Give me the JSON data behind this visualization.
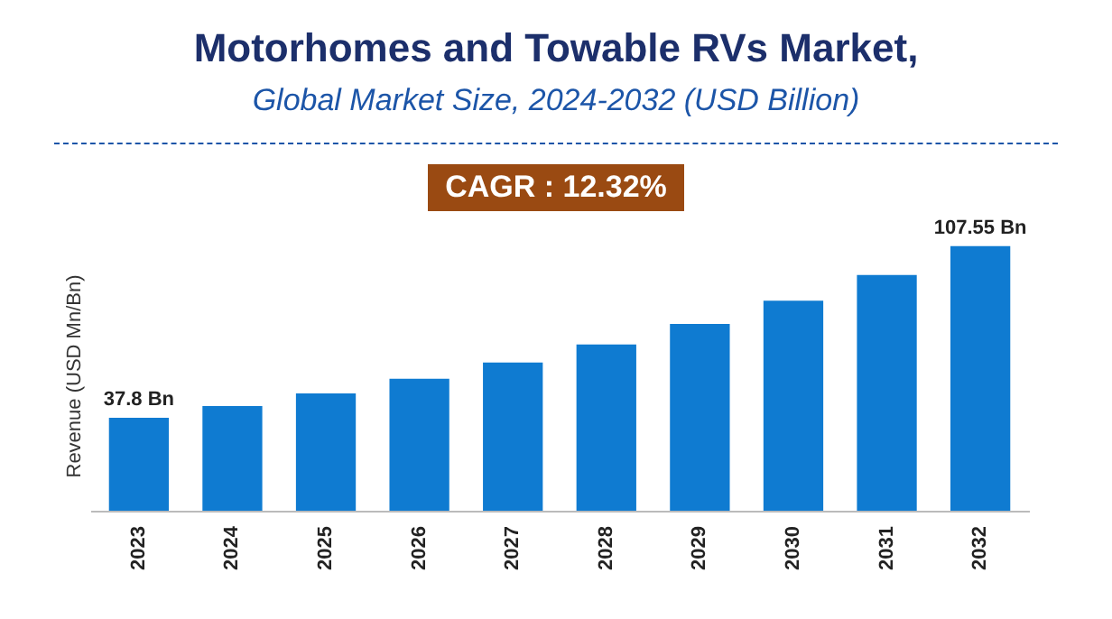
{
  "chart_data": {
    "type": "bar",
    "title": "Motorhomes and Towable RVs Market,",
    "subtitle": "Global Market Size, 2024-2032 (USD Billion)",
    "ylabel": "Revenue (USD Mn/Bn)",
    "annotations": [
      "CAGR : 12.32%"
    ],
    "categories": [
      "2023",
      "2024",
      "2025",
      "2026",
      "2027",
      "2028",
      "2029",
      "2030",
      "2031",
      "2032"
    ],
    "values": [
      37.8,
      42.5,
      47.7,
      53.6,
      60.2,
      67.6,
      75.9,
      85.3,
      95.8,
      107.55
    ],
    "value_labels": [
      "37.8 Bn",
      null,
      null,
      null,
      null,
      null,
      null,
      null,
      null,
      "107.55 Bn"
    ],
    "color": "#0f7bd1"
  }
}
